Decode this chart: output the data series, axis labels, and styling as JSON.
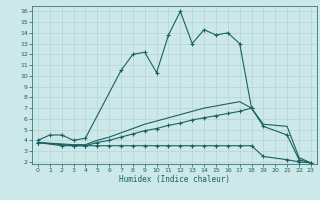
{
  "xlabel": "Humidex (Indice chaleur)",
  "bg_color": "#cce8e8",
  "grid_color": "#b5d5d5",
  "line_color": "#1a6060",
  "xlim": [
    -0.5,
    23.5
  ],
  "ylim": [
    1.8,
    16.5
  ],
  "yticks": [
    2,
    3,
    4,
    5,
    6,
    7,
    8,
    9,
    10,
    11,
    12,
    13,
    14,
    15,
    16
  ],
  "xticks": [
    0,
    1,
    2,
    3,
    4,
    5,
    6,
    7,
    8,
    9,
    10,
    11,
    12,
    13,
    14,
    15,
    16,
    17,
    18,
    19,
    20,
    21,
    22,
    23
  ],
  "line1_x": [
    0,
    1,
    2,
    3,
    4,
    7,
    8,
    9,
    10,
    11,
    12,
    13,
    14,
    15,
    16,
    17,
    18
  ],
  "line1_y": [
    4.0,
    4.5,
    4.5,
    4.0,
    4.2,
    10.5,
    12.0,
    12.2,
    10.3,
    13.8,
    16.0,
    13.0,
    14.3,
    13.8,
    14.0,
    13.0,
    7.0
  ],
  "line2_x": [
    0,
    2,
    3,
    4,
    5,
    6,
    7,
    8,
    9,
    10,
    11,
    12,
    13,
    14,
    15,
    16,
    17,
    18,
    19,
    21,
    22,
    23
  ],
  "line2_y": [
    3.8,
    3.5,
    3.5,
    3.5,
    3.5,
    3.5,
    3.5,
    3.5,
    3.5,
    3.5,
    3.5,
    3.5,
    3.5,
    3.5,
    3.5,
    3.5,
    3.5,
    3.5,
    2.5,
    2.2,
    2.0,
    1.9
  ],
  "line3_x": [
    0,
    3,
    4,
    5,
    6,
    7,
    8,
    9,
    10,
    11,
    12,
    13,
    14,
    15,
    16,
    17,
    18,
    19,
    21,
    22,
    23
  ],
  "line3_y": [
    3.8,
    3.5,
    3.5,
    3.8,
    4.0,
    4.3,
    4.6,
    4.9,
    5.1,
    5.4,
    5.6,
    5.9,
    6.1,
    6.3,
    6.5,
    6.7,
    7.0,
    5.3,
    4.5,
    2.2,
    1.9
  ],
  "line4_x": [
    0,
    3,
    4,
    5,
    6,
    7,
    8,
    9,
    10,
    11,
    12,
    13,
    14,
    15,
    16,
    17,
    18,
    19,
    21,
    22,
    23
  ],
  "line4_y": [
    3.8,
    3.6,
    3.6,
    4.0,
    4.3,
    4.7,
    5.1,
    5.5,
    5.8,
    6.1,
    6.4,
    6.7,
    7.0,
    7.2,
    7.4,
    7.6,
    7.0,
    5.5,
    5.3,
    2.4,
    1.9
  ]
}
